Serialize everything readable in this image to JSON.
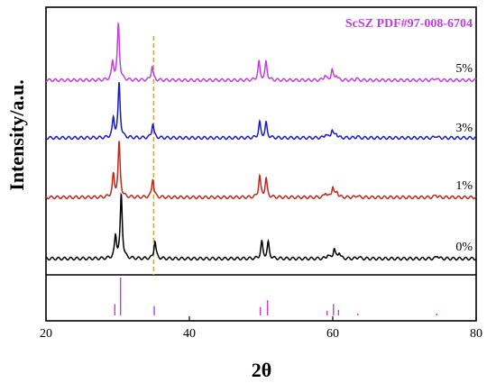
{
  "chart_data": {
    "type": "line",
    "xlabel": "2θ",
    "ylabel": "Intensity/a.u.",
    "xlim": [
      20,
      80
    ],
    "x_ticks": [
      "20",
      "40",
      "60",
      "80"
    ],
    "marker_line_2theta": 35.0,
    "series": [
      {
        "name": "0%",
        "color": "#000000",
        "peaks": [
          [
            29.7,
            0.35
          ],
          [
            30.5,
            1.0
          ],
          [
            35.2,
            0.28
          ],
          [
            50.1,
            0.26
          ],
          [
            51.0,
            0.25
          ],
          [
            59.3,
            0.06
          ],
          [
            60.2,
            0.16
          ],
          [
            60.9,
            0.1
          ],
          [
            63.6,
            0.03
          ],
          [
            74.6,
            0.05
          ]
        ]
      },
      {
        "name": "1%",
        "color": "#c0281c",
        "peaks": [
          [
            29.4,
            0.4
          ],
          [
            30.2,
            1.0
          ],
          [
            34.9,
            0.35
          ],
          [
            49.8,
            0.39
          ],
          [
            50.7,
            0.34
          ],
          [
            59.0,
            0.09
          ],
          [
            60.0,
            0.2
          ],
          [
            60.6,
            0.1
          ],
          [
            63.4,
            0.04
          ],
          [
            74.4,
            0.05
          ]
        ]
      },
      {
        "name": "3%",
        "color": "#1a1ac8",
        "peaks": [
          [
            29.4,
            0.35
          ],
          [
            30.2,
            1.0
          ],
          [
            34.9,
            0.27
          ],
          [
            49.8,
            0.28
          ],
          [
            50.7,
            0.27
          ],
          [
            59.0,
            0.07
          ],
          [
            59.9,
            0.15
          ],
          [
            60.5,
            0.08
          ],
          [
            63.4,
            0.03
          ],
          [
            74.4,
            0.04
          ]
        ]
      },
      {
        "name": "5%",
        "color": "#c23ee0",
        "peaks": [
          [
            29.3,
            0.32
          ],
          [
            30.1,
            1.0
          ],
          [
            34.8,
            0.25
          ],
          [
            49.7,
            0.32
          ],
          [
            50.7,
            0.32
          ],
          [
            58.9,
            0.09
          ],
          [
            59.9,
            0.18
          ],
          [
            60.5,
            0.09
          ],
          [
            63.3,
            0.03
          ],
          [
            74.3,
            0.04
          ]
        ]
      }
    ],
    "reference": {
      "name": "ScSZ PDF#97-008-6704",
      "color": "#c23ee0",
      "lines": [
        [
          29.6,
          0.3
        ],
        [
          30.4,
          1.0
        ],
        [
          35.1,
          0.25
        ],
        [
          49.9,
          0.22
        ],
        [
          50.9,
          0.4
        ],
        [
          59.2,
          0.12
        ],
        [
          60.1,
          0.3
        ],
        [
          60.8,
          0.15
        ],
        [
          63.5,
          0.05
        ],
        [
          74.5,
          0.05
        ]
      ]
    }
  }
}
